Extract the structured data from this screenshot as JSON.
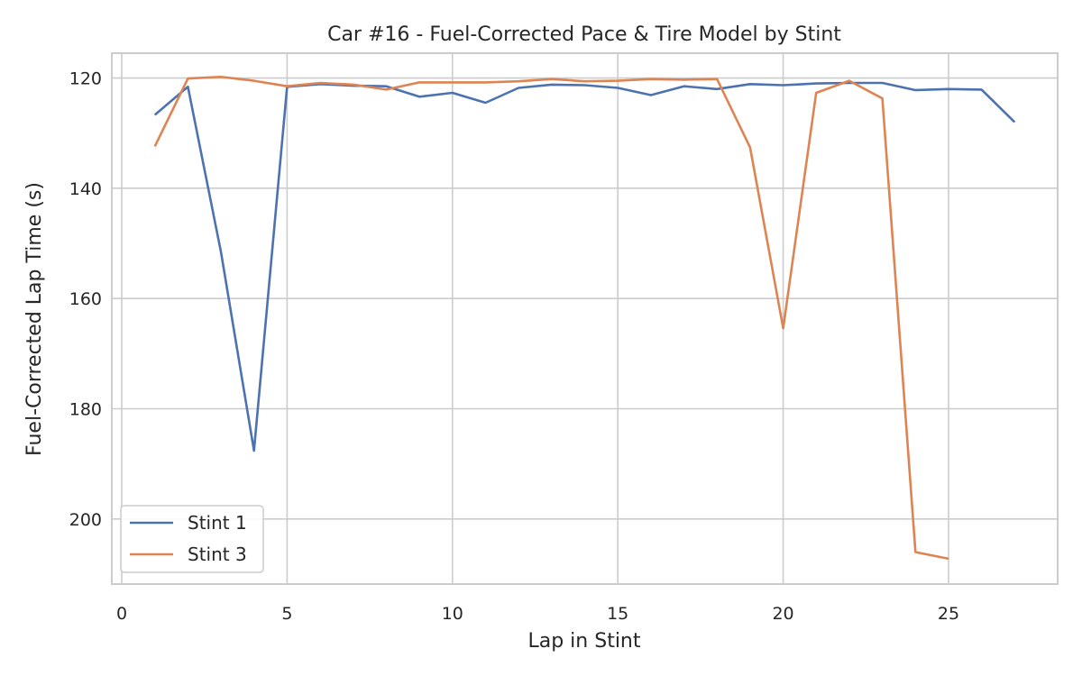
{
  "chart_data": {
    "type": "line",
    "title": "Car #16 - Fuel-Corrected Pace & Tire Model by Stint",
    "xlabel": "Lap in Stint",
    "ylabel": "Fuel-Corrected Lap Time (s)",
    "xlim": [
      -0.3,
      28.3
    ],
    "ylim": [
      211.8,
      115.5
    ],
    "y_inverted": true,
    "xticks": [
      0,
      5,
      10,
      15,
      20,
      25
    ],
    "yticks": [
      120,
      140,
      160,
      180,
      200
    ],
    "grid": true,
    "legend_position": "lower-left",
    "series": [
      {
        "name": "Stint 1",
        "color": "#4c72b0",
        "x": [
          1,
          2,
          3,
          4,
          5,
          6,
          7,
          8,
          9,
          10,
          11,
          12,
          13,
          14,
          15,
          16,
          17,
          18,
          19,
          20,
          21,
          22,
          23,
          24,
          25,
          26,
          27
        ],
        "y": [
          126.7,
          121.6,
          151.5,
          187.6,
          121.6,
          121.1,
          121.4,
          121.5,
          123.4,
          122.7,
          124.5,
          121.8,
          121.2,
          121.3,
          121.8,
          123.1,
          121.5,
          122.0,
          121.1,
          121.3,
          121.0,
          120.9,
          120.9,
          122.2,
          122.0,
          122.1,
          128.0
        ]
      },
      {
        "name": "Stint 3",
        "color": "#dd8452",
        "x": [
          1,
          2,
          3,
          4,
          5,
          6,
          7,
          8,
          9,
          10,
          11,
          12,
          13,
          14,
          15,
          16,
          17,
          18,
          19,
          20,
          21,
          22,
          23,
          24,
          25
        ],
        "y": [
          132.4,
          120.1,
          119.8,
          120.5,
          121.5,
          120.9,
          121.2,
          122.1,
          120.8,
          120.8,
          120.8,
          120.6,
          120.2,
          120.6,
          120.5,
          120.2,
          120.3,
          120.2,
          132.6,
          165.4,
          122.7,
          120.5,
          123.7,
          206.0,
          207.2
        ]
      }
    ]
  }
}
